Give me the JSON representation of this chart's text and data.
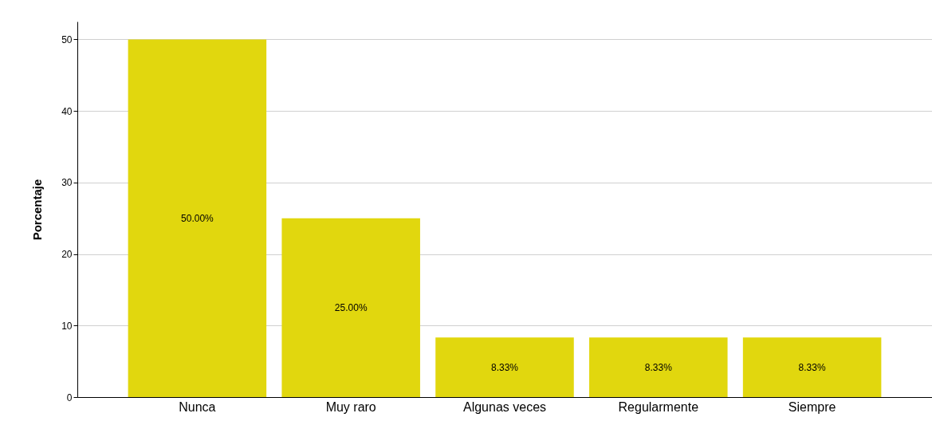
{
  "chart_data": {
    "type": "bar",
    "ylabel": "Porcentaje",
    "categories": [
      "Nunca",
      "Muy raro",
      "Algunas veces",
      "Regularmente",
      "Siempre"
    ],
    "values": [
      50,
      25,
      8.33,
      8.33,
      8.33
    ],
    "value_labels": [
      "50.00%",
      "25.00%",
      "8.33%",
      "8.33%",
      "8.33%"
    ],
    "color": "#e1d70e",
    "ylim": [
      0,
      52.5
    ],
    "yticks": [
      0,
      10,
      20,
      30,
      40,
      50
    ],
    "grid": "y"
  }
}
